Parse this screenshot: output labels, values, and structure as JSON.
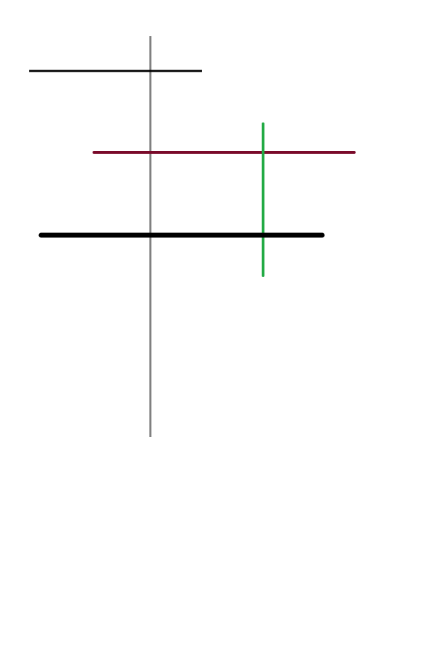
{
  "diagram": {
    "lines": [
      {
        "id": "top-black-line",
        "orientation": "horizontal",
        "color": "#000000"
      },
      {
        "id": "vertical-gray-line",
        "orientation": "vertical",
        "color": "#808080"
      },
      {
        "id": "crimson-line",
        "orientation": "horizontal",
        "color": "#7a0a2a"
      },
      {
        "id": "green-line",
        "orientation": "vertical",
        "color": "#22aa44"
      },
      {
        "id": "thick-black-line",
        "orientation": "horizontal",
        "color": "#000000"
      }
    ]
  }
}
